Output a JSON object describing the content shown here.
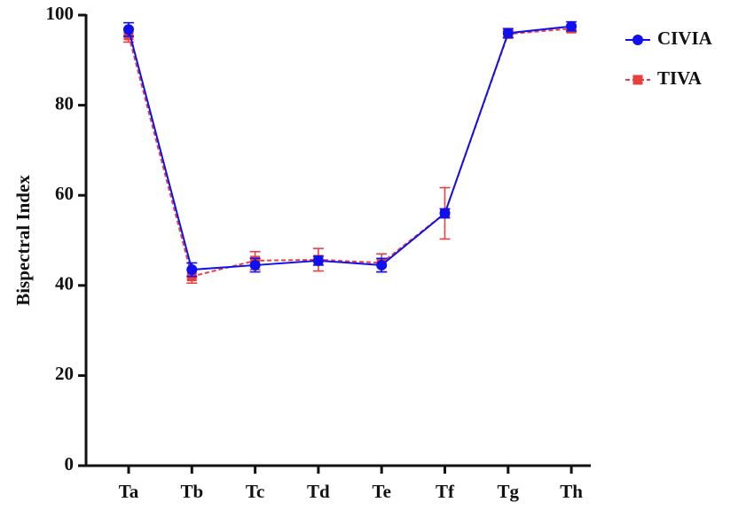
{
  "chart_data": {
    "type": "line",
    "ylabel": "Bispectral Index",
    "categories": [
      "Ta",
      "Tb",
      "Tc",
      "Td",
      "Te",
      "Tf",
      "Tg",
      "Th"
    ],
    "series": [
      {
        "name": "CIVIA",
        "color": "#1010ee",
        "marker": "circle",
        "dash": false,
        "values": [
          96.8,
          43.5,
          44.5,
          45.5,
          44.5,
          56,
          96,
          97.5
        ],
        "errors": [
          1.5,
          1.5,
          1.5,
          1,
          1.5,
          1,
          1,
          1
        ]
      },
      {
        "name": "TIVA",
        "color": "#e8403f",
        "marker": "square",
        "dash": true,
        "values": [
          95.5,
          42,
          45.5,
          45.7,
          45,
          56,
          95.8,
          97
        ],
        "errors": [
          1.5,
          1.5,
          2,
          2.5,
          2,
          5.7,
          0.8,
          0.7
        ]
      }
    ],
    "ylim": [
      0,
      100
    ],
    "yticks": [
      0,
      20,
      40,
      60,
      80,
      100
    ],
    "grid": false,
    "legend": "upper right"
  }
}
